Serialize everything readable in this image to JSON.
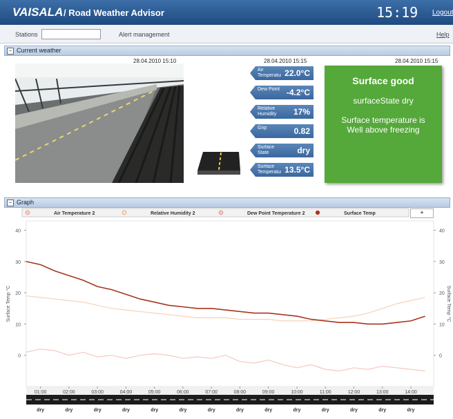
{
  "header": {
    "brand": "VAISALA",
    "title": "/ Road Weather Advisor",
    "time": "15:19",
    "logout": "Logout"
  },
  "toolbar": {
    "stations_label": "Stations",
    "alert": "Alert management",
    "help": "Help"
  },
  "current_weather": {
    "section": "Current weather",
    "camera_time": "28.04.2010 15:10",
    "readings_time": "28.04.2010 15:15",
    "status_time": "28.04.2010 15:15",
    "readings": [
      {
        "label": "Air Temperature",
        "value": "22.0°C"
      },
      {
        "label": "Dew Point",
        "value": "-4.2°C"
      },
      {
        "label": "Relative Humidity",
        "value": "17%"
      },
      {
        "label": "Gnp",
        "value": "0.82"
      },
      {
        "label": "Surface State",
        "value": "dry"
      },
      {
        "label": "Surface Temperature",
        "value": "13.5°C"
      }
    ],
    "status": {
      "title": "Surface good",
      "state": "surfaceState dry",
      "message": "Surface temperature is Well above freezing"
    }
  },
  "graph": {
    "section": "Graph",
    "add": "+",
    "road_states": [
      "dry",
      "dry",
      "dry",
      "dry",
      "dry",
      "dry",
      "dry",
      "dry",
      "dry",
      "dry",
      "dry",
      "dry",
      "dry",
      "dry"
    ]
  },
  "chart_data": {
    "type": "line",
    "ylabel": "Surface Temp °C",
    "y2label": "Surface Temp °C",
    "x": [
      0.5,
      1,
      1.5,
      2,
      2.5,
      3,
      3.5,
      4,
      4.5,
      5,
      5.5,
      6,
      6.5,
      7,
      7.5,
      8,
      8.5,
      9,
      9.5,
      10,
      10.5,
      11,
      11.5,
      12,
      12.5,
      13,
      13.5,
      14,
      14.5
    ],
    "xlim": [
      0.5,
      14.8
    ],
    "xticks": [
      {
        "value": 1,
        "label": "01:00"
      },
      {
        "value": 2,
        "label": "02:00"
      },
      {
        "value": 3,
        "label": "03:00"
      },
      {
        "value": 4,
        "label": "04:00"
      },
      {
        "value": 5,
        "label": "05:00"
      },
      {
        "value": 6,
        "label": "06:00"
      },
      {
        "value": 7,
        "label": "07:00"
      },
      {
        "value": 8,
        "label": "08:00"
      },
      {
        "value": 9,
        "label": "09:00"
      },
      {
        "value": 10,
        "label": "10:00"
      },
      {
        "value": 11,
        "label": "11:00"
      },
      {
        "value": 12,
        "label": "12:00"
      },
      {
        "value": 13,
        "label": "13:00"
      },
      {
        "value": 14,
        "label": "14:00"
      }
    ],
    "ylim": [
      -10,
      43
    ],
    "yticks": [
      0,
      10,
      20,
      30,
      40
    ],
    "y2lim": [
      -10,
      43
    ],
    "y2ticks": [
      0,
      10,
      20,
      30,
      40
    ],
    "grid": false,
    "series": [
      {
        "name": "Air Temperature 2",
        "color": "#f6d2b8",
        "values": [
          19,
          18.5,
          18,
          17.5,
          17,
          16,
          15,
          14.5,
          14,
          13.5,
          13,
          12.5,
          12,
          12,
          12,
          11.5,
          11.5,
          11.5,
          11,
          11,
          11,
          11.5,
          12,
          12.5,
          13.5,
          15,
          16.5,
          17.5,
          18.5
        ]
      },
      {
        "name": "Relative Humidity 2",
        "color": "#f7edc0",
        "values": [
          null,
          null,
          null,
          null,
          null,
          null,
          null,
          null,
          null,
          null,
          null,
          null,
          null,
          null,
          null,
          null,
          null,
          null,
          null,
          null,
          null,
          null,
          null,
          null,
          null,
          null,
          null,
          null,
          null
        ]
      },
      {
        "name": "Dew Point Temperature 2",
        "color": "#f4c8c0",
        "values": [
          1,
          2,
          1.5,
          0,
          1,
          -0.5,
          0,
          -1,
          0,
          0.5,
          0,
          -1,
          -0.5,
          -1,
          0,
          -2,
          -2.5,
          -1.5,
          -3,
          -4,
          -3,
          -4.5,
          -5,
          -4,
          -4.5,
          -3.5,
          -4,
          -4.5,
          -5
        ]
      },
      {
        "name": "Surface Temp",
        "color": "#a8341c",
        "values": [
          30,
          29,
          27,
          25.5,
          24,
          22,
          21,
          19.5,
          18,
          17,
          16,
          15.5,
          15,
          15,
          14.5,
          14,
          13.5,
          13.5,
          13,
          12.5,
          11.5,
          11,
          10.5,
          10.5,
          10,
          10,
          10.5,
          11,
          12.5
        ]
      }
    ]
  }
}
